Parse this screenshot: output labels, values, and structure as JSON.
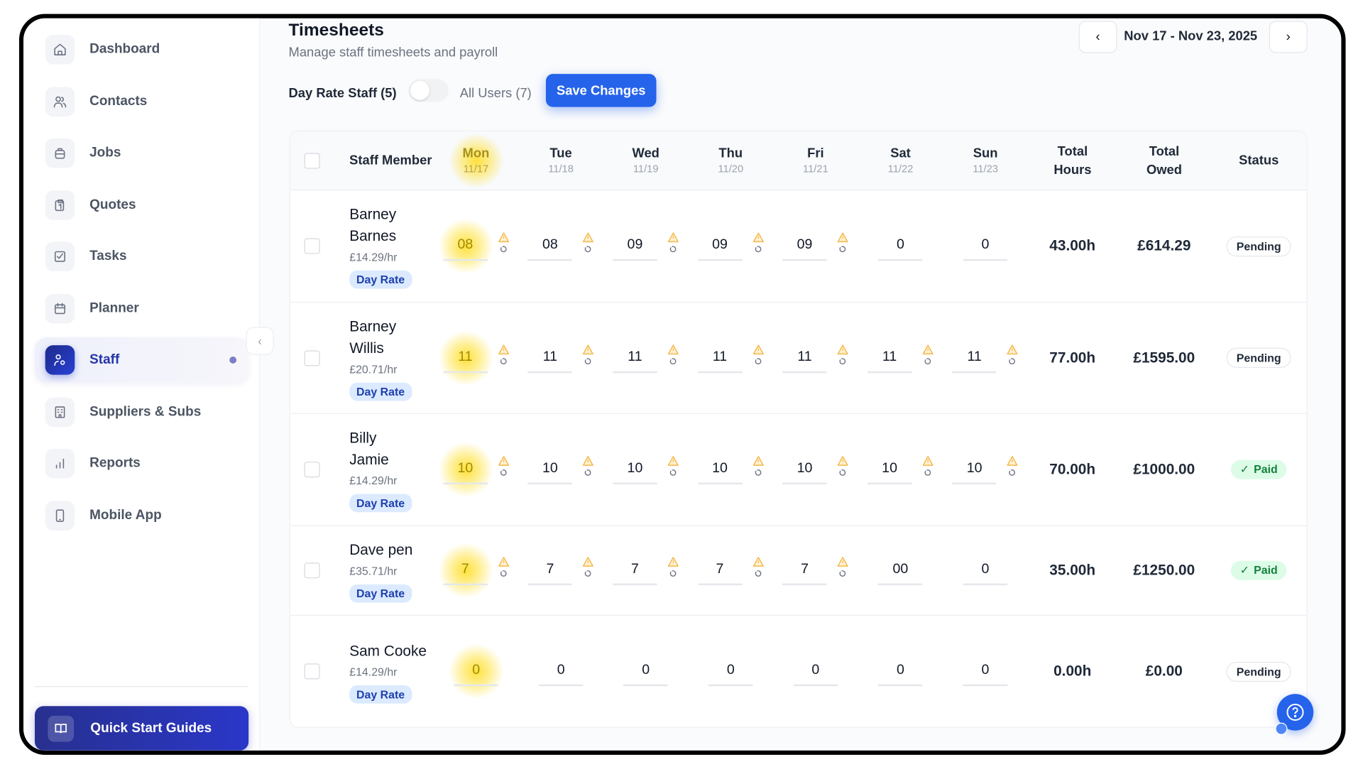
{
  "sidebar": {
    "items": [
      {
        "label": "Dashboard",
        "icon": "home-icon"
      },
      {
        "label": "Contacts",
        "icon": "users-icon"
      },
      {
        "label": "Jobs",
        "icon": "briefcase-icon"
      },
      {
        "label": "Quotes",
        "icon": "clipboard-icon"
      },
      {
        "label": "Tasks",
        "icon": "checkbox-icon"
      },
      {
        "label": "Planner",
        "icon": "calendar-icon"
      },
      {
        "label": "Staff",
        "icon": "staff-icon",
        "active": true
      },
      {
        "label": "Suppliers & Subs",
        "icon": "building-icon"
      },
      {
        "label": "Reports",
        "icon": "bar-chart-icon"
      },
      {
        "label": "Mobile App",
        "icon": "phone-icon"
      }
    ],
    "quick_start_label": "Quick Start Guides"
  },
  "header": {
    "title": "Timesheets",
    "subtitle": "Manage staff timesheets and payroll",
    "date_range": "Nov 17 - Nov 23, 2025"
  },
  "filters": {
    "day_rate_label": "Day Rate Staff (5)",
    "all_users_label": "All Users (7)",
    "toggle_on": false,
    "save_label": "Save Changes"
  },
  "table": {
    "columns": {
      "staff": "Staff Member",
      "total_hours": "Total Hours",
      "total_owed": "Total Owed",
      "status": "Status"
    },
    "days": [
      {
        "day": "Mon",
        "date": "11/17",
        "highlight": true
      },
      {
        "day": "Tue",
        "date": "11/18"
      },
      {
        "day": "Wed",
        "date": "11/19"
      },
      {
        "day": "Thu",
        "date": "11/20"
      },
      {
        "day": "Fri",
        "date": "11/21"
      },
      {
        "day": "Sat",
        "date": "11/22"
      },
      {
        "day": "Sun",
        "date": "11/23"
      }
    ],
    "rows": [
      {
        "name": "Barney Barnes",
        "rate": "£14.29/hr",
        "badge": "Day Rate",
        "hours": [
          "08",
          "08",
          "09",
          "09",
          "09",
          "0",
          "0"
        ],
        "warnings": [
          true,
          true,
          true,
          true,
          true,
          false,
          false
        ],
        "total_hours": "43.00h",
        "total_owed": "£614.29",
        "status": "Pending"
      },
      {
        "name": "Barney Willis",
        "rate": "£20.71/hr",
        "badge": "Day Rate",
        "hours": [
          "11",
          "11",
          "11",
          "11",
          "11",
          "11",
          "11"
        ],
        "warnings": [
          true,
          true,
          true,
          true,
          true,
          true,
          true
        ],
        "total_hours": "77.00h",
        "total_owed": "£1595.00",
        "status": "Pending"
      },
      {
        "name": "Billy Jamie",
        "rate": "£14.29/hr",
        "badge": "Day Rate",
        "hours": [
          "10",
          "10",
          "10",
          "10",
          "10",
          "10",
          "10"
        ],
        "warnings": [
          true,
          true,
          true,
          true,
          true,
          true,
          true
        ],
        "total_hours": "70.00h",
        "total_owed": "£1000.00",
        "status": "Paid"
      },
      {
        "name": "Dave pen",
        "rate": "£35.71/hr",
        "badge": "Day Rate",
        "hours": [
          "7",
          "7",
          "7",
          "7",
          "7",
          "00",
          "0"
        ],
        "warnings": [
          true,
          true,
          true,
          true,
          true,
          false,
          false
        ],
        "total_hours": "35.00h",
        "total_owed": "£1250.00",
        "status": "Paid"
      },
      {
        "name": "Sam Cooke",
        "rate": "£14.29/hr",
        "badge": "Day Rate",
        "hours": [
          "0",
          "0",
          "0",
          "0",
          "0",
          "0",
          "0"
        ],
        "warnings": [
          false,
          false,
          false,
          false,
          false,
          false,
          false
        ],
        "total_hours": "0.00h",
        "total_owed": "£0.00",
        "status": "Pending"
      }
    ]
  },
  "colors": {
    "accent": "#2563eb",
    "sidebar_active": "#1e2a8a",
    "warning": "#f5b84a",
    "paid_bg": "#dcfce7",
    "paid_text": "#15803d",
    "badge_bg": "#dbeafe"
  }
}
